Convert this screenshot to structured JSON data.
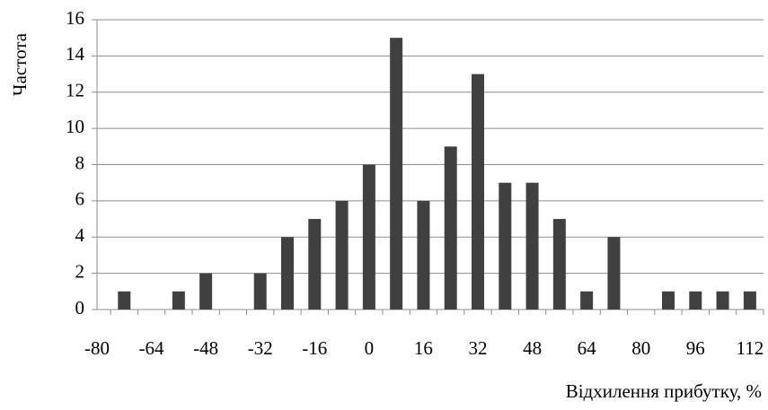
{
  "chart_data": {
    "type": "bar",
    "y_label": "Частота",
    "x_label": "Відхилення прибутку, %",
    "categories": [
      "-80",
      null,
      "-64",
      null,
      "-48",
      null,
      "-32",
      null,
      "-16",
      null,
      "0",
      null,
      "16",
      null,
      "32",
      null,
      "48",
      null,
      "64",
      null,
      "80",
      null,
      "96",
      null,
      "112"
    ],
    "values": [
      0,
      1,
      0,
      1,
      2,
      0,
      2,
      4,
      5,
      6,
      8,
      15,
      6,
      9,
      13,
      7,
      7,
      5,
      1,
      4,
      0,
      1,
      1,
      1,
      1
    ],
    "color": "#404040",
    "ylim": [
      0,
      16
    ],
    "yticks": [
      0,
      2,
      4,
      6,
      8,
      10,
      12,
      14,
      16
    ],
    "grid": true
  }
}
